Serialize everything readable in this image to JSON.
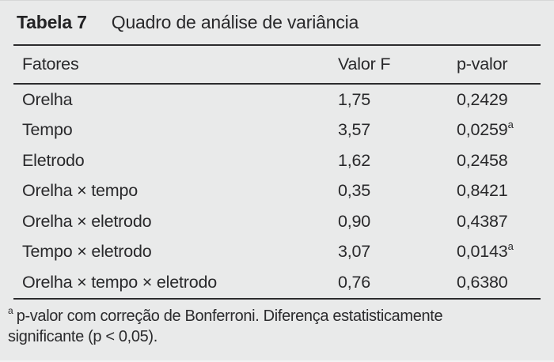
{
  "page": {
    "background": "#e9eaea",
    "text_color": "#29292b",
    "rule_color": "#2c2c2e"
  },
  "table": {
    "label": "Tabela 7",
    "title": "Quadro de análise de variância",
    "columns": [
      "Fatores",
      "Valor F",
      "p-valor"
    ],
    "rows": [
      {
        "factor": "Orelha",
        "f": "1,75",
        "p": "0,2429",
        "sup": ""
      },
      {
        "factor": "Tempo",
        "f": "3,57",
        "p": "0,0259",
        "sup": "a"
      },
      {
        "factor": "Eletrodo",
        "f": "1,62",
        "p": "0,2458",
        "sup": ""
      },
      {
        "factor": "Orelha × tempo",
        "f": "0,35",
        "p": "0,8421",
        "sup": ""
      },
      {
        "factor": "Orelha × eletrodo",
        "f": "0,90",
        "p": "0,4387",
        "sup": ""
      },
      {
        "factor": "Tempo × eletrodo",
        "f": "3,07",
        "p": "0,0143",
        "sup": "a"
      },
      {
        "factor": "Orelha × tempo × eletrodo",
        "f": "0,76",
        "p": "0,6380",
        "sup": ""
      }
    ],
    "footnote": {
      "marker": "a",
      "line1": "p-valor com correção de Bonferroni. Diferença estatisticamente",
      "line2": "significante (p < 0,05)."
    }
  }
}
